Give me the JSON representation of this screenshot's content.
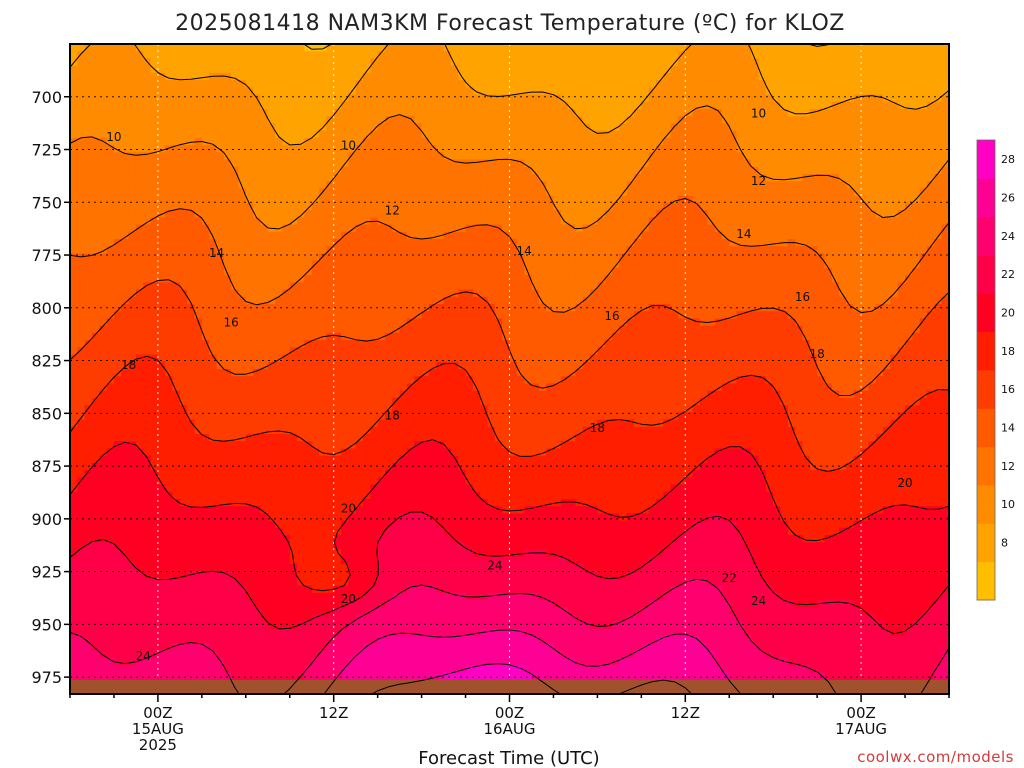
{
  "chart_data": {
    "type": "heatmap",
    "title": "2025081418 NAM3KM Forecast Temperature (ºC) for KLOZ",
    "xlabel": "Forecast Time (UTC)",
    "ylabel": "",
    "credit": "coolwx.com/models",
    "y_ticks": [
      "700",
      "725",
      "750",
      "775",
      "800",
      "825",
      "850",
      "875",
      "900",
      "925",
      "950",
      "975"
    ],
    "y_tick_values": [
      700,
      725,
      750,
      775,
      800,
      825,
      850,
      875,
      900,
      925,
      950,
      975
    ],
    "y_range": [
      675,
      983
    ],
    "x_ticks": [
      {
        "hour": 6,
        "l1": "00Z",
        "l2": "15AUG",
        "l3": "2025"
      },
      {
        "hour": 18,
        "l1": "12Z",
        "l2": "",
        "l3": ""
      },
      {
        "hour": 30,
        "l1": "00Z",
        "l2": "16AUG",
        "l3": ""
      },
      {
        "hour": 42,
        "l1": "12Z",
        "l2": "",
        "l3": ""
      },
      {
        "hour": 54,
        "l1": "00Z",
        "l2": "17AUG",
        "l3": ""
      }
    ],
    "x_range_hours": [
      0,
      60
    ],
    "grid": "dotted",
    "colorbar": {
      "labels": [
        "28",
        "26",
        "24",
        "22",
        "20",
        "18",
        "16",
        "14",
        "12",
        "10",
        "8"
      ],
      "levels": [
        6,
        8,
        10,
        12,
        14,
        16,
        18,
        20,
        22,
        24,
        26,
        28,
        30
      ],
      "colors": [
        "#ffbf00",
        "#ffa300",
        "#ff8c00",
        "#ff7300",
        "#ff5a00",
        "#ff3c00",
        "#ff1e00",
        "#ff0022",
        "#ff0048",
        "#ff006e",
        "#ff0094",
        "#ff00c4"
      ],
      "placement": "right"
    },
    "contour_labels": [
      {
        "text": "10",
        "hour": 3,
        "p": 719
      },
      {
        "text": "10",
        "hour": 19,
        "p": 723
      },
      {
        "text": "10",
        "hour": 47,
        "p": 708
      },
      {
        "text": "12",
        "hour": 22,
        "p": 754
      },
      {
        "text": "12",
        "hour": 47,
        "p": 740
      },
      {
        "text": "14",
        "hour": 10,
        "p": 774
      },
      {
        "text": "14",
        "hour": 31,
        "p": 773
      },
      {
        "text": "14",
        "hour": 46,
        "p": 765
      },
      {
        "text": "16",
        "hour": 11,
        "p": 807
      },
      {
        "text": "16",
        "hour": 37,
        "p": 804
      },
      {
        "text": "16",
        "hour": 50,
        "p": 795
      },
      {
        "text": "18",
        "hour": 4,
        "p": 827
      },
      {
        "text": "18",
        "hour": 22,
        "p": 851
      },
      {
        "text": "18",
        "hour": 36,
        "p": 857
      },
      {
        "text": "18",
        "hour": 51,
        "p": 822
      },
      {
        "text": "20",
        "hour": 19,
        "p": 895
      },
      {
        "text": "20",
        "hour": 19,
        "p": 938
      },
      {
        "text": "20",
        "hour": 57,
        "p": 883
      },
      {
        "text": "22",
        "hour": 45,
        "p": 928
      },
      {
        "text": "24",
        "hour": 29,
        "p": 922
      },
      {
        "text": "24",
        "hour": 47,
        "p": 939
      },
      {
        "text": "24",
        "hour": 5,
        "p": 965
      }
    ]
  }
}
